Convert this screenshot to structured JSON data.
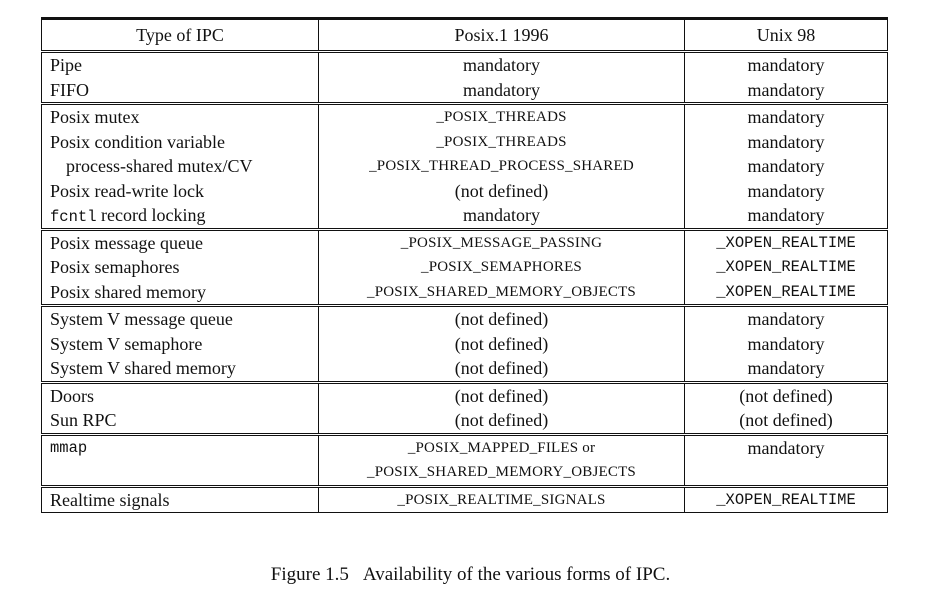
{
  "table": {
    "headers": [
      "Type of IPC",
      "Posix.1 1996",
      "Unix 98"
    ],
    "groups": [
      [
        [
          "Pipe",
          "mandatory",
          "mandatory"
        ],
        [
          "FIFO",
          "mandatory",
          "mandatory"
        ]
      ],
      [
        [
          "Posix mutex",
          "_POSIX_THREADS",
          "mandatory"
        ],
        [
          "Posix condition variable",
          "_POSIX_THREADS",
          "mandatory"
        ],
        [
          "process-shared mutex/CV",
          "_POSIX_THREAD_PROCESS_SHARED",
          "mandatory"
        ],
        [
          "Posix read-write lock",
          "(not defined)",
          "mandatory"
        ],
        [
          "fcntl record locking",
          "mandatory",
          "mandatory"
        ]
      ],
      [
        [
          "Posix message queue",
          "_POSIX_MESSAGE_PASSING",
          "_XOPEN_REALTIME"
        ],
        [
          "Posix semaphores",
          "_POSIX_SEMAPHORES",
          "_XOPEN_REALTIME"
        ],
        [
          "Posix shared memory",
          "_POSIX_SHARED_MEMORY_OBJECTS",
          "_XOPEN_REALTIME"
        ]
      ],
      [
        [
          "System V message queue",
          "(not defined)",
          "mandatory"
        ],
        [
          "System V semaphore",
          "(not defined)",
          "mandatory"
        ],
        [
          "System V shared memory",
          "(not defined)",
          "mandatory"
        ]
      ],
      [
        [
          "Doors",
          "(not defined)",
          "(not defined)"
        ],
        [
          "Sun RPC",
          "(not defined)",
          "(not defined)"
        ]
      ],
      [
        [
          "mmap",
          "_POSIX_MAPPED_FILES or",
          "mandatory"
        ],
        [
          "",
          "_POSIX_SHARED_MEMORY_OBJECTS",
          ""
        ]
      ],
      [
        [
          "Realtime signals",
          "_POSIX_REALTIME_SIGNALS",
          "_XOPEN_REALTIME"
        ]
      ]
    ]
  },
  "caption": {
    "number": "Figure 1.5",
    "text": "Availability of the various forms of IPC."
  }
}
